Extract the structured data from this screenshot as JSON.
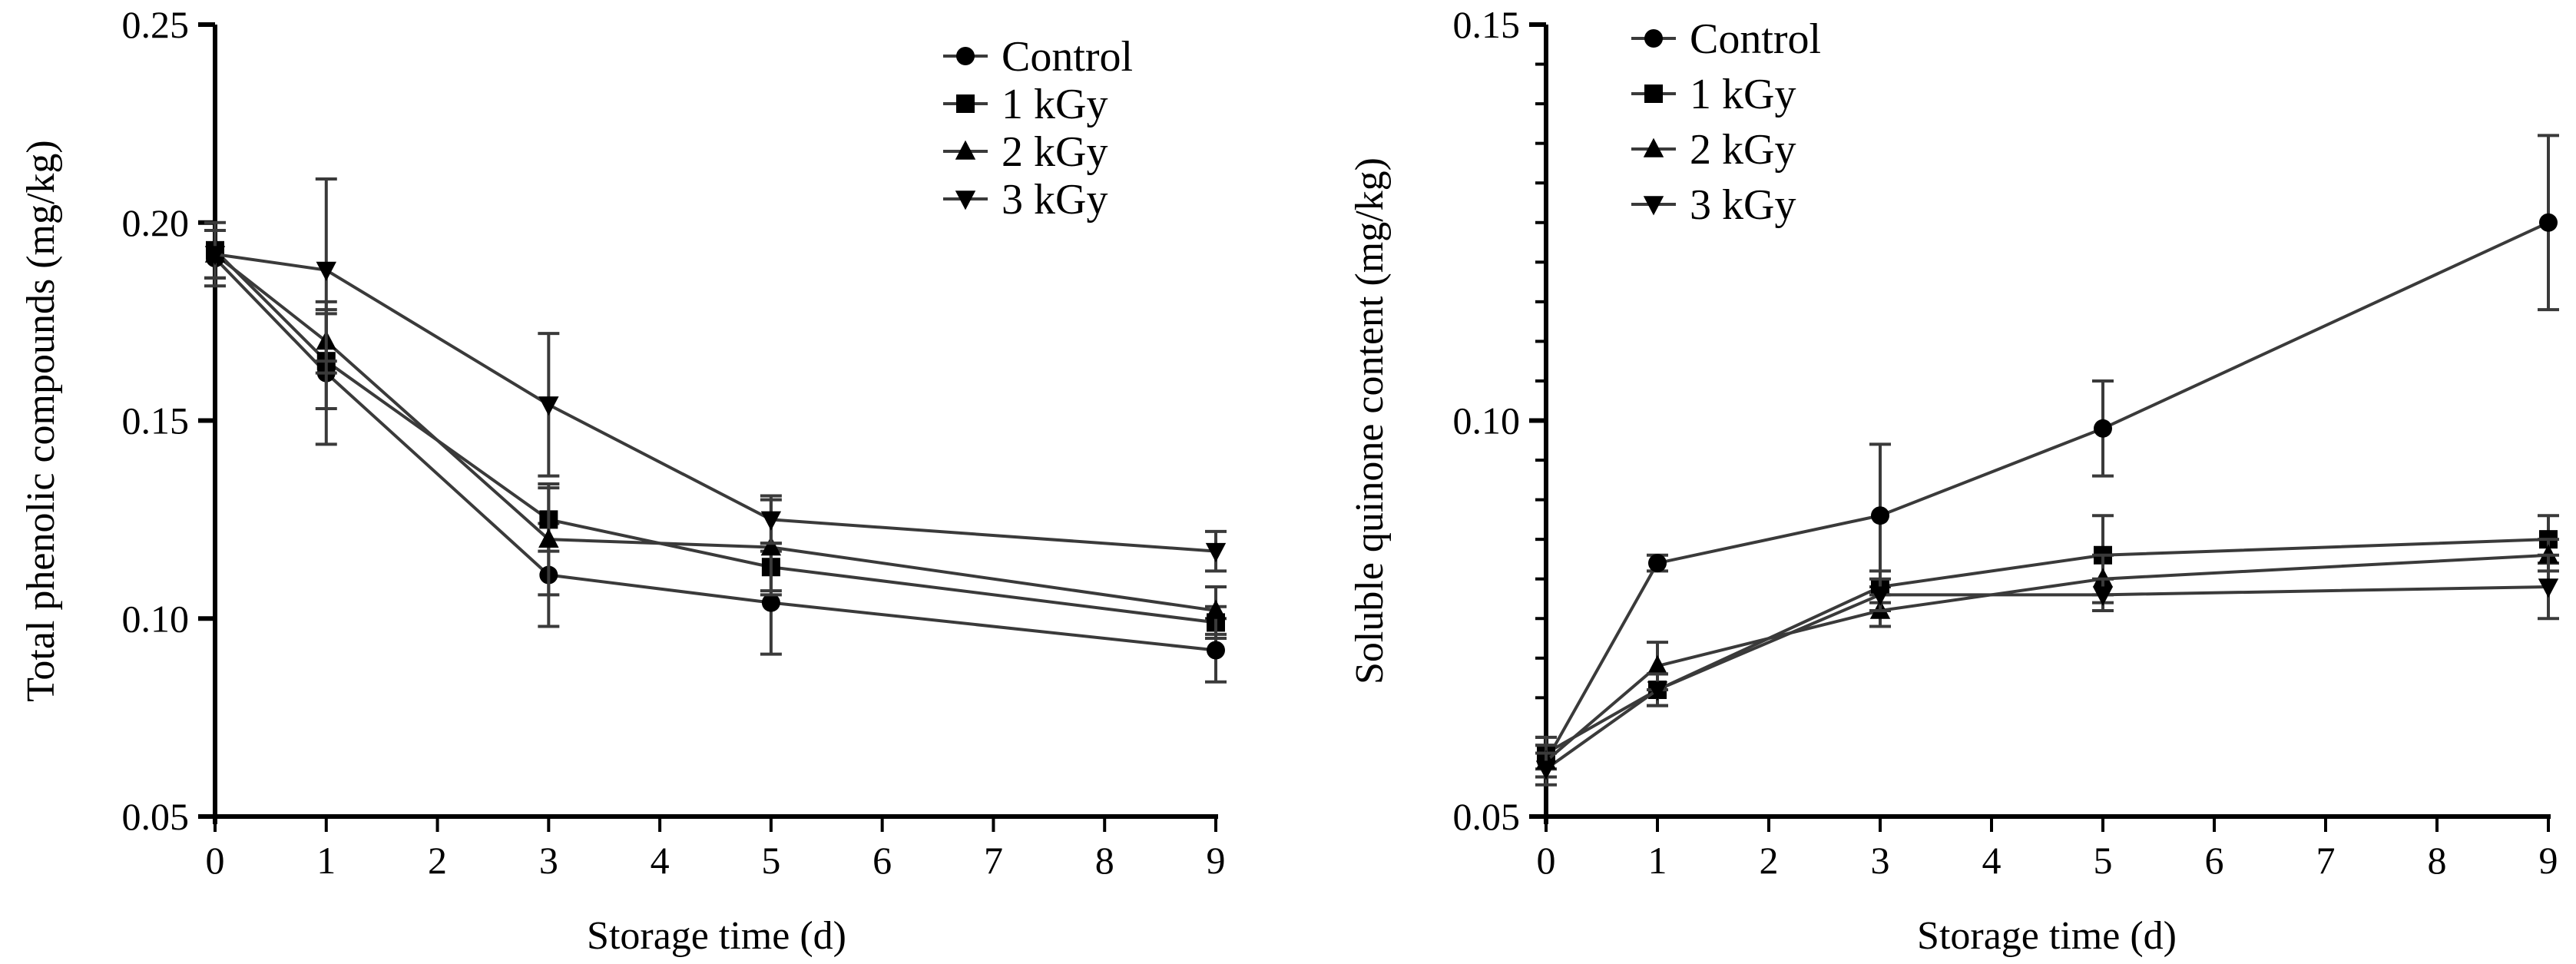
{
  "chart_data": [
    {
      "type": "line",
      "title": "",
      "xlabel": "Storage time (d)",
      "ylabel": "Total phenolic compounds (mg/kg)",
      "xlim": [
        0,
        9
      ],
      "ylim": [
        0.05,
        0.25
      ],
      "x_ticks": [
        0,
        1,
        2,
        3,
        4,
        5,
        6,
        7,
        8,
        9
      ],
      "y_ticks": [
        "0.05",
        "0.10",
        "0.15",
        "0.20",
        "0.25"
      ],
      "y_tick_values": [
        0.05,
        0.1,
        0.15,
        0.2,
        0.25
      ],
      "y_minor_step": null,
      "grid": false,
      "legend_position": "top-right",
      "x": [
        0,
        1,
        3,
        5,
        9
      ],
      "series": [
        {
          "name": "Control",
          "marker": "circle",
          "values": [
            0.191,
            0.162,
            0.111,
            0.104,
            0.092
          ],
          "errors": [
            0.007,
            0.018,
            0.013,
            0.013,
            0.008
          ]
        },
        {
          "name": "1 kGy",
          "marker": "square",
          "values": [
            0.193,
            0.165,
            0.125,
            0.113,
            0.099
          ],
          "errors": [
            0.007,
            0.012,
            0.008,
            0.006,
            0.004
          ]
        },
        {
          "name": "2 kGy",
          "marker": "triangle-up",
          "values": [
            0.192,
            0.17,
            0.12,
            0.118,
            0.102
          ],
          "errors": [
            0.006,
            0.008,
            0.014,
            0.012,
            0.006
          ]
        },
        {
          "name": "3 kGy",
          "marker": "triangle-down",
          "values": [
            0.192,
            0.188,
            0.154,
            0.125,
            0.117
          ],
          "errors": [
            0.006,
            0.023,
            0.018,
            0.006,
            0.005
          ]
        }
      ]
    },
    {
      "type": "line",
      "title": "",
      "xlabel": "Storage time (d)",
      "ylabel": "Soluble quinone content (mg/kg)",
      "xlim": [
        0,
        9
      ],
      "ylim": [
        0.05,
        0.15
      ],
      "x_ticks": [
        0,
        1,
        2,
        3,
        4,
        5,
        6,
        7,
        8,
        9
      ],
      "y_ticks": [
        "0.05",
        "0.10",
        "0.15"
      ],
      "y_tick_values": [
        0.05,
        0.1,
        0.15
      ],
      "y_minor_step": 0.005,
      "grid": false,
      "legend_position": "top-left",
      "x": [
        0,
        1,
        3,
        5,
        9
      ],
      "series": [
        {
          "name": "Control",
          "marker": "circle",
          "values": [
            0.057,
            0.082,
            0.088,
            0.099,
            0.125
          ],
          "errors": [
            0.002,
            0.001,
            0.009,
            0.006,
            0.011
          ]
        },
        {
          "name": "1 kGy",
          "marker": "square",
          "values": [
            0.058,
            0.066,
            0.079,
            0.083,
            0.085
          ],
          "errors": [
            0.002,
            0.002,
            0.002,
            0.005,
            0.003
          ]
        },
        {
          "name": "2 kGy",
          "marker": "triangle-up",
          "values": [
            0.057,
            0.069,
            0.076,
            0.08,
            0.083
          ],
          "errors": [
            0.002,
            0.003,
            0.002,
            0.003,
            0.002
          ]
        },
        {
          "name": "3 kGy",
          "marker": "triangle-down",
          "values": [
            0.056,
            0.066,
            0.078,
            0.078,
            0.079
          ],
          "errors": [
            0.002,
            0.002,
            0.002,
            0.002,
            0.004
          ]
        }
      ]
    }
  ],
  "colors": {
    "line": "#3a3a3a",
    "marker": "#000000",
    "axis": "#000000",
    "background": "#ffffff"
  }
}
